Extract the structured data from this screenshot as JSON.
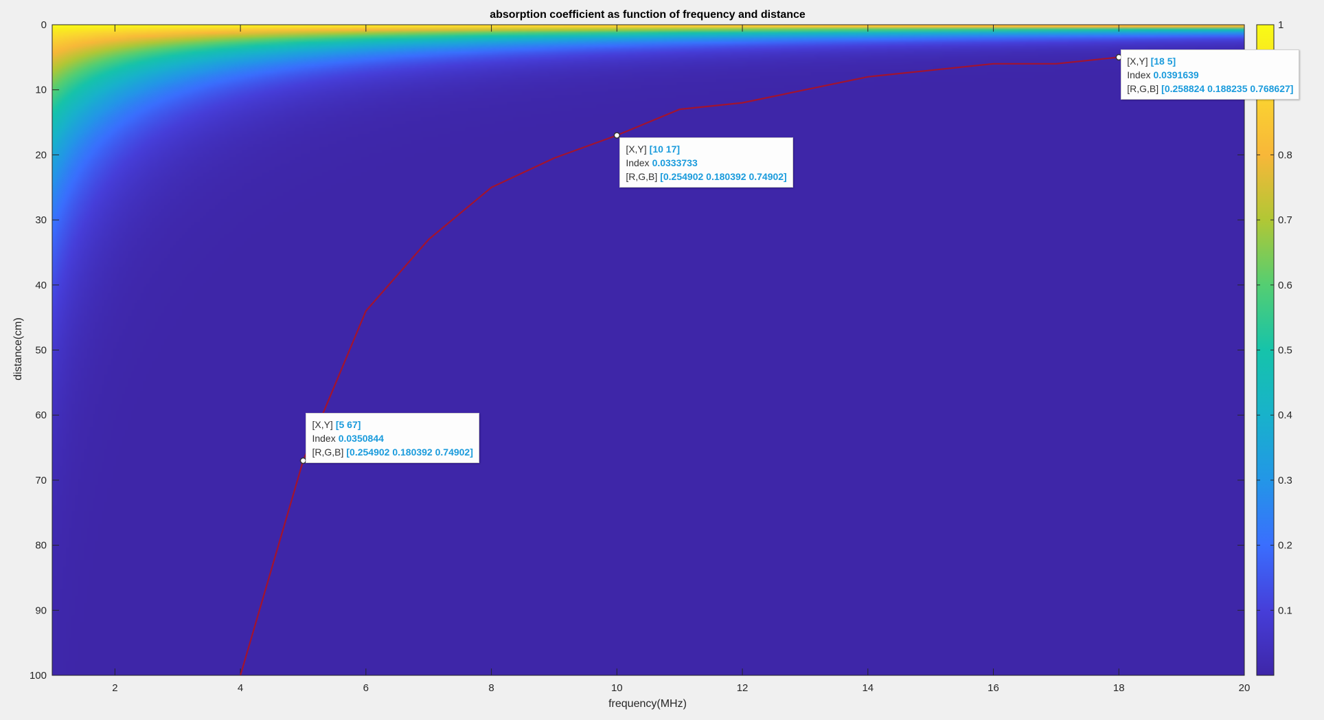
{
  "chart_data": {
    "type": "heatmap",
    "title": "absorption coefficient as function of frequency and distance",
    "xlabel": "frequency(MHz)",
    "ylabel": "distance(cm)",
    "xlim": [
      1,
      20
    ],
    "ylim": [
      0,
      100
    ],
    "y_direction": "reverse",
    "x_ticks": [
      2,
      4,
      6,
      8,
      10,
      12,
      14,
      16,
      18,
      20
    ],
    "y_ticks": [
      0,
      10,
      20,
      30,
      40,
      50,
      60,
      70,
      80,
      90,
      100
    ],
    "colormap": "parula",
    "clim": [
      0,
      1
    ],
    "colorbar_ticks": [
      0.1,
      0.2,
      0.3,
      0.4,
      0.5,
      0.6,
      0.7,
      0.8,
      1
    ],
    "colorbar_tick_labels": [
      "0.1",
      "0.2",
      "0.3",
      "0.4",
      "0.5",
      "0.6",
      "0.7",
      "0.8",
      "1"
    ],
    "contour_line": {
      "color": "#a2142f",
      "points": [
        [
          4,
          100
        ],
        [
          5,
          67
        ],
        [
          6,
          44
        ],
        [
          7,
          33
        ],
        [
          8,
          25
        ],
        [
          9,
          20.5
        ],
        [
          10,
          17
        ],
        [
          11,
          13
        ],
        [
          12,
          12
        ],
        [
          13,
          10
        ],
        [
          14,
          8
        ],
        [
          15,
          7
        ],
        [
          16,
          6
        ],
        [
          17,
          6
        ],
        [
          18,
          5
        ],
        [
          19,
          4.5
        ],
        [
          20,
          4.5
        ]
      ]
    },
    "datatips": [
      {
        "x": 5,
        "y": 67,
        "xy_label": "[X,Y]",
        "xy_value": "[5 67]",
        "index_label": "Index",
        "index_value": "0.0350844",
        "rgb_label": "[R,G,B]",
        "rgb_value": "[0.254902 0.180392 0.74902]"
      },
      {
        "x": 10,
        "y": 17,
        "xy_label": "[X,Y]",
        "xy_value": "[10 17]",
        "index_label": "Index",
        "index_value": "0.0333733",
        "rgb_label": "[R,G,B]",
        "rgb_value": "[0.254902 0.180392 0.74902]"
      },
      {
        "x": 18,
        "y": 5,
        "xy_label": "[X,Y]",
        "xy_value": "[18 5]",
        "index_label": "Index",
        "index_value": "0.0391639",
        "rgb_label": "[R,G,B]",
        "rgb_value": "[0.258824 0.188235 0.768627]"
      }
    ]
  }
}
